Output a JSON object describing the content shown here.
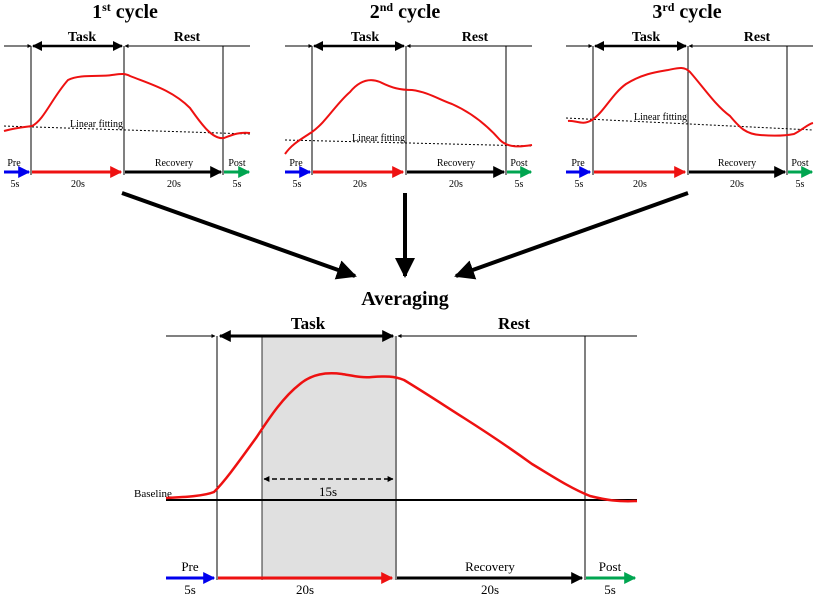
{
  "cycles": [
    {
      "num": "1",
      "sup": "st",
      "word": " cycle"
    },
    {
      "num": "2",
      "sup": "nd",
      "word": " cycle"
    },
    {
      "num": "3",
      "sup": "rd",
      "word": " cycle"
    }
  ],
  "labels": {
    "task": "Task",
    "rest": "Rest",
    "pre": "Pre",
    "recovery": "Recovery",
    "post": "Post",
    "t_pre": "5s",
    "t_task": "20s",
    "t_recovery": "20s",
    "t_post": "5s",
    "linear_fitting": "Linear fitting",
    "averaging": "Averaging",
    "baseline": "Baseline",
    "window": "15s"
  },
  "colors": {
    "signal": "#ee1111",
    "pre_arrow": "#0000ee",
    "task_arrow": "#ee1111",
    "recovery_arrow": "#000000",
    "post_arrow": "#00a550",
    "shade": "#e0e0e0"
  }
}
